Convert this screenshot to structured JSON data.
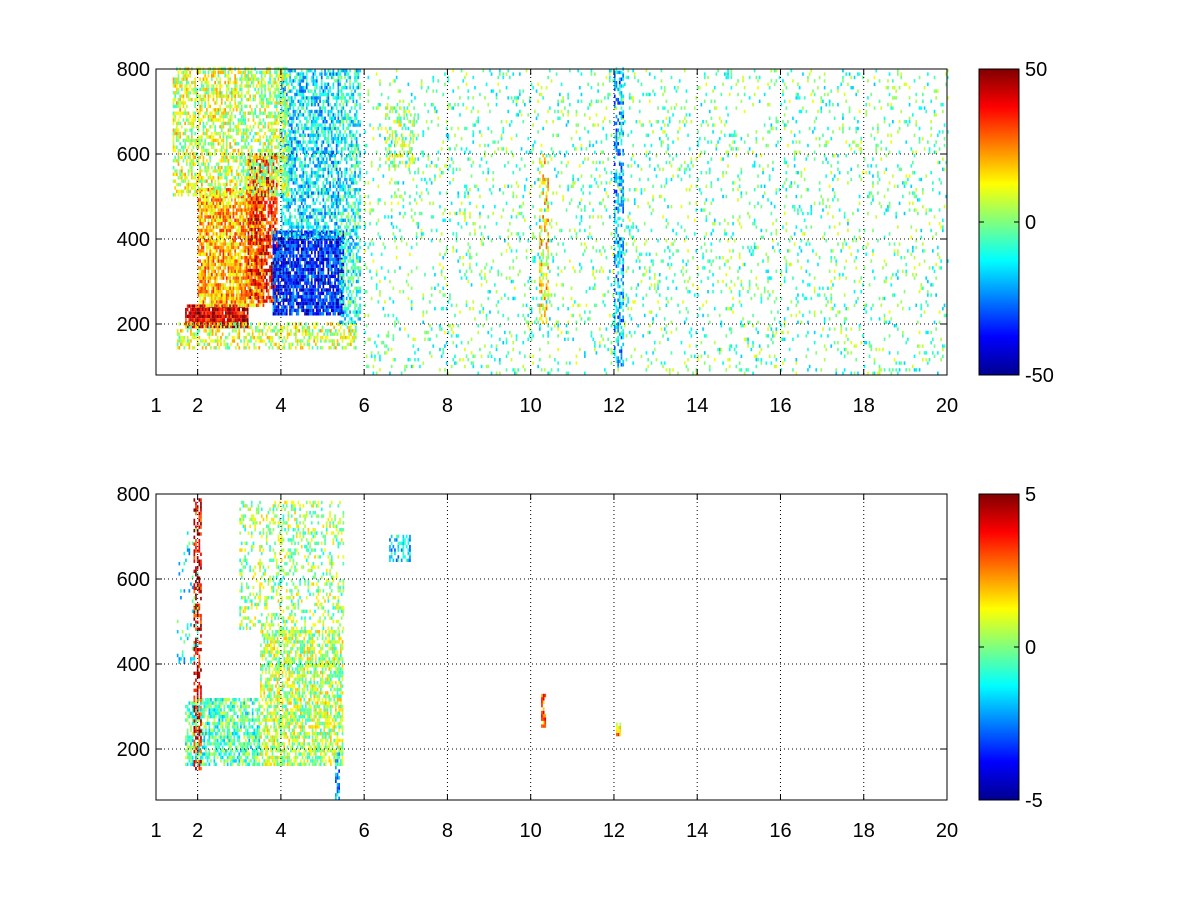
{
  "figure": {
    "background": "#ffffff"
  },
  "colormap": {
    "name": "jet",
    "stops": [
      "#00008f",
      "#0000ff",
      "#00ffff",
      "#ffff00",
      "#ff0000",
      "#800000"
    ]
  },
  "chart_data": [
    {
      "type": "heatmap",
      "title": "",
      "xlabel": "",
      "ylabel": "",
      "xlim": [
        1,
        20
      ],
      "ylim": [
        80,
        800
      ],
      "x_ticks": [
        1,
        2,
        4,
        6,
        8,
        10,
        12,
        14,
        16,
        18,
        20
      ],
      "x_tick_labels": [
        "1",
        "2",
        "4",
        "6",
        "8",
        "10",
        "12",
        "14",
        "16",
        "18",
        "20"
      ],
      "y_ticks": [
        200,
        400,
        600,
        800
      ],
      "y_tick_labels": [
        "200",
        "400",
        "600",
        "800"
      ],
      "grid": "dotted",
      "colorbar": {
        "min": -50,
        "max": 50,
        "ticks": [
          50,
          0,
          -50
        ],
        "tick_labels": [
          "50",
          "0",
          "-50"
        ]
      },
      "clusters": [
        {
          "x": [
            1.7,
            3.2
          ],
          "y": [
            190,
            240
          ],
          "v": 40,
          "d": 0.95
        },
        {
          "x": [
            2.0,
            3.6
          ],
          "y": [
            240,
            520
          ],
          "v": 20,
          "d": 0.8
        },
        {
          "x": [
            1.4,
            3.0
          ],
          "y": [
            500,
            800
          ],
          "v": 8,
          "d": 0.55
        },
        {
          "x": [
            3.2,
            3.9
          ],
          "y": [
            250,
            600
          ],
          "v": 35,
          "d": 0.7
        },
        {
          "x": [
            3.8,
            5.5
          ],
          "y": [
            220,
            420
          ],
          "v": -35,
          "d": 0.85
        },
        {
          "x": [
            4.0,
            5.4
          ],
          "y": [
            400,
            800
          ],
          "v": -15,
          "d": 0.6
        },
        {
          "x": [
            3.0,
            4.2
          ],
          "y": [
            500,
            800
          ],
          "v": 5,
          "d": 0.55
        },
        {
          "x": [
            1.5,
            5.8
          ],
          "y": [
            140,
            200
          ],
          "v": 8,
          "d": 0.5
        },
        {
          "x": [
            5.4,
            5.9
          ],
          "y": [
            200,
            800
          ],
          "v": -10,
          "d": 0.5
        },
        {
          "x": [
            6.0,
            20.0
          ],
          "y": [
            80,
            800
          ],
          "v": -3,
          "d": 0.1
        },
        {
          "x": [
            10.2,
            10.4
          ],
          "y": [
            200,
            600
          ],
          "v": 15,
          "d": 0.4
        },
        {
          "x": [
            12.0,
            12.2
          ],
          "y": [
            100,
            800
          ],
          "v": -20,
          "d": 0.5
        },
        {
          "x": [
            6.5,
            7.2
          ],
          "y": [
            560,
            720
          ],
          "v": 3,
          "d": 0.3
        }
      ]
    },
    {
      "type": "heatmap",
      "title": "",
      "xlabel": "",
      "ylabel": "",
      "xlim": [
        1,
        20
      ],
      "ylim": [
        80,
        800
      ],
      "x_ticks": [
        1,
        2,
        4,
        6,
        8,
        10,
        12,
        14,
        16,
        18,
        20
      ],
      "x_tick_labels": [
        "1",
        "2",
        "4",
        "6",
        "8",
        "10",
        "12",
        "14",
        "16",
        "18",
        "20"
      ],
      "y_ticks": [
        200,
        400,
        600,
        800
      ],
      "y_tick_labels": [
        "200",
        "400",
        "600",
        "800"
      ],
      "grid": "dotted",
      "colorbar": {
        "min": -5,
        "max": 5,
        "ticks": [
          5,
          0,
          -5
        ],
        "tick_labels": [
          "5",
          "0",
          "-5"
        ]
      },
      "clusters": [
        {
          "x": [
            1.7,
            3.5
          ],
          "y": [
            160,
            320
          ],
          "v": -0.5,
          "d": 0.7
        },
        {
          "x": [
            3.5,
            5.5
          ],
          "y": [
            160,
            480
          ],
          "v": 0.5,
          "d": 0.65
        },
        {
          "x": [
            3.0,
            5.5
          ],
          "y": [
            480,
            780
          ],
          "v": 0.3,
          "d": 0.3
        },
        {
          "x": [
            1.9,
            2.1
          ],
          "y": [
            150,
            790
          ],
          "v": 4,
          "d": 0.5
        },
        {
          "x": [
            1.5,
            2.0
          ],
          "y": [
            400,
            720
          ],
          "v": -1,
          "d": 0.15
        },
        {
          "x": [
            6.6,
            7.1
          ],
          "y": [
            640,
            700
          ],
          "v": -1.5,
          "d": 0.5
        },
        {
          "x": [
            10.25,
            10.35
          ],
          "y": [
            250,
            330
          ],
          "v": 2.5,
          "d": 0.8
        },
        {
          "x": [
            12.05,
            12.15
          ],
          "y": [
            230,
            260
          ],
          "v": 2,
          "d": 0.9
        },
        {
          "x": [
            5.3,
            5.4
          ],
          "y": [
            80,
            200
          ],
          "v": -2,
          "d": 0.6
        }
      ]
    }
  ]
}
